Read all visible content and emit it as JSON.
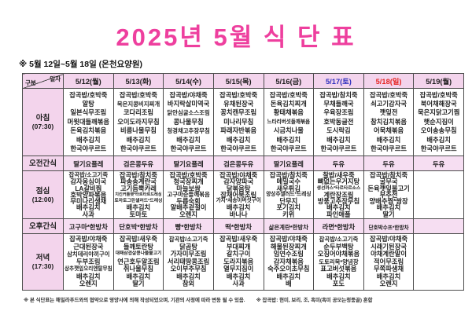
{
  "title": "2025년 5월 식 단 표",
  "subtitle": "※  5월 12일~5월 18일 (온천요양원)",
  "corner": {
    "date_label": "일자",
    "category_label": "구분"
  },
  "colors": {
    "title": "#ee3f9e",
    "header_bg": "#f3d4ec",
    "snack_bg": "#f6def2",
    "saturday": "#2f2fbe",
    "sunday": "#e62420",
    "border": "#4d4d4d",
    "text": "#1c1c1c"
  },
  "rows": [
    {
      "key": "breakfast",
      "label": "아침",
      "time": "(07:30)",
      "type": "list"
    },
    {
      "key": "am_snack",
      "label": "오전간식",
      "time": "",
      "type": "single"
    },
    {
      "key": "lunch",
      "label": "점심",
      "time": "(12:00)",
      "type": "list"
    },
    {
      "key": "pm_snack",
      "label": "오후간식",
      "time": "",
      "type": "single"
    },
    {
      "key": "dinner",
      "label": "저녁",
      "time": "(17:30)",
      "type": "list"
    }
  ],
  "days": [
    {
      "date": "5/12(월)",
      "day_type": "weekday",
      "breakfast": [
        "잡곡밥/호박죽",
        "알탕",
        "일본식무조림",
        "머윗대들깨볶음",
        "돈육김치볶음",
        "배추김치",
        "한국야쿠르트"
      ],
      "am_snack": "딸기요플레",
      "lunch": [
        "잡곡밥/소고기죽",
        "감자옹심이국",
        "LA갈비찜",
        "호박양파볶음",
        "무미나리생채",
        "배추김치",
        "사과"
      ],
      "pm_snack": "고구마*한방차",
      "dinner": [
        "잡곡밥/야채죽",
        "근대된장국",
        "삼치데리야끼구이",
        "두부조림",
        "상추깻잎오리엔탈무침",
        "배추김치",
        "오렌지"
      ]
    },
    {
      "date": "5/13(화)",
      "day_type": "weekday",
      "breakfast": [
        "잡곡밥/호박죽",
        "묵은지콩비지찌개",
        "코다리조림",
        "오이도라지무침",
        "비름나물무침",
        "배추김치",
        "한국야쿠르트"
      ],
      "am_snack": "검은콩두유",
      "lunch": [
        "잡곡밥/참치죽",
        "파송송계란국",
        "고기듬뿍카레",
        "치킨커틀렛*타르타르드레싱",
        "토마토그린샐러드*드레싱",
        "배추김치",
        "토마토"
      ],
      "pm_snack": "단호박*한방차",
      "dinner": [
        "잡곡밥/새우죽",
        "들깨토란탕",
        "대패삼겹살콩나물불고기",
        "연근호두알조림",
        "취나물무침",
        "배추김치",
        "딸기"
      ]
    },
    {
      "date": "5/14(수)",
      "day_type": "weekday",
      "breakfast": [
        "잡곡밥/야채죽",
        "바지락살미역국",
        "닭안심굴소스조림",
        "콩나물무침",
        "청경채고추장무침",
        "배추김치",
        "한국야쿠르트"
      ],
      "am_snack": "딸기요플레",
      "lunch": [
        "잡곡밥/호박죽",
        "청국장찌개",
        "마늘보쌈",
        "고구마순들깨볶음",
        "두릅숙회",
        "알배추겉절이",
        "오렌지"
      ],
      "pm_snack": "빵*한방차",
      "dinner": [
        "잡곡밥/소고기죽",
        "닭곰탕",
        "가자미무조림",
        "서리태땅콩조림",
        "오이부추무침",
        "배추김치",
        "참외"
      ]
    },
    {
      "date": "5/15(목)",
      "day_type": "weekday",
      "breakfast": [
        "잡곡밥/호박죽",
        "유채된장국",
        "꽁치캔무조림",
        "미나리무침",
        "파래자반볶음",
        "배추김치",
        "한국야쿠르트"
      ],
      "am_snack": "검은콩두유",
      "lunch": [
        "잡곡밥/야채죽",
        "감자양파국",
        "닭볶음탕",
        "잡채어묵조림",
        "가지*새송이버섯구이",
        "배추김치",
        "바나나"
      ],
      "pm_snack": "떡*한방차",
      "dinner": [
        "잡곡밥/새우죽",
        "부대찌개",
        "갈치구이",
        "도라지볶음",
        "열무지짐이",
        "배추김치",
        "사과"
      ]
    },
    {
      "date": "5/16(금)",
      "day_type": "weekday",
      "breakfast": [
        "잡곡밥/호박죽",
        "돈육김치찌개",
        "황태채볶음",
        "느타리버섯들깨볶음",
        "시금치나물",
        "배추김치",
        "한국야쿠르트"
      ],
      "am_snack": "딸기요플레",
      "lunch": [
        "잡곡밥/참치죽",
        "메밀국수",
        "새우튀김",
        "양상추샐러드*드레싱",
        "단무지",
        "포기김치",
        "키위"
      ],
      "pm_snack": "삶은계란*한방차",
      "dinner": [
        "잡곡밥/야채죽",
        "해물된장찌개",
        "임연수조림",
        "감자채볶음",
        "숙주오이초무침",
        "배추김치",
        "배"
      ]
    },
    {
      "date": "5/17(토)",
      "day_type": "saturday",
      "breakfast": [
        "잡곡밥/참치죽",
        "무채들깨국",
        "우육장조림",
        "호박동글전",
        "도시락김",
        "배추김치",
        "한국야쿠르트"
      ],
      "am_snack": "두유",
      "lunch": [
        "찰밥/새우죽",
        "뼈없는우거지탕",
        "생선까스*타르타르소스",
        "계란장조림",
        "방풍고추장무침",
        "배추김치",
        "파인애플"
      ],
      "pm_snack": "라면*한방차",
      "dinner": [
        "잡곡밥/소고기죽",
        "순두부백탕",
        "오징어야채볶음",
        "도토리묵*양념장",
        "표고버섯볶음",
        "배추김치",
        "포도"
      ]
    },
    {
      "date": "5/18(일)",
      "day_type": "sunday",
      "breakfast": [
        "잡곡밥/호박죽",
        "쇠고기감자국",
        "깻잎전",
        "참치김치볶음",
        "어묵채볶음",
        "배추김치",
        "한국야쿠르트"
      ],
      "am_snack": "두유",
      "lunch": [
        "잡곡밥/참치죽",
        "굴무국",
        "돈육깻잎불고기",
        "부추전",
        "양배추찜*쌈장",
        "배추김치",
        "딸기"
      ],
      "pm_snack": "단호박수프*한방차",
      "dinner": [
        "잡곡밥/야채죽",
        "시래기된장국",
        "야채계란말이",
        "적어무조림",
        "무쪽파생채",
        "배추김치",
        "오렌지"
      ]
    },
    {
      "date": "5/19(월)",
      "day_type": "weekday",
      "breakfast": [
        "잡곡밥/호박죽",
        "북어채해장국",
        "묵은지닭고기찜",
        "햇순지짐이",
        "오이송송무침",
        "배추김치",
        "한국야쿠르트"
      ],
      "am_snack": "두유",
      "lunch": [],
      "pm_snack": "",
      "dinner": []
    }
  ],
  "footnote": {
    "main": "※ 본 식단표는 해밀라푸드와의 협약으로 영양사에 의해 작성되었으며, 기관의 사정에 따라 변동 될 수 있음.",
    "note2": "※ 잡곡밥: 현미, 보리, 조, 흑미(흑미 공모는청풍골) 혼합"
  }
}
